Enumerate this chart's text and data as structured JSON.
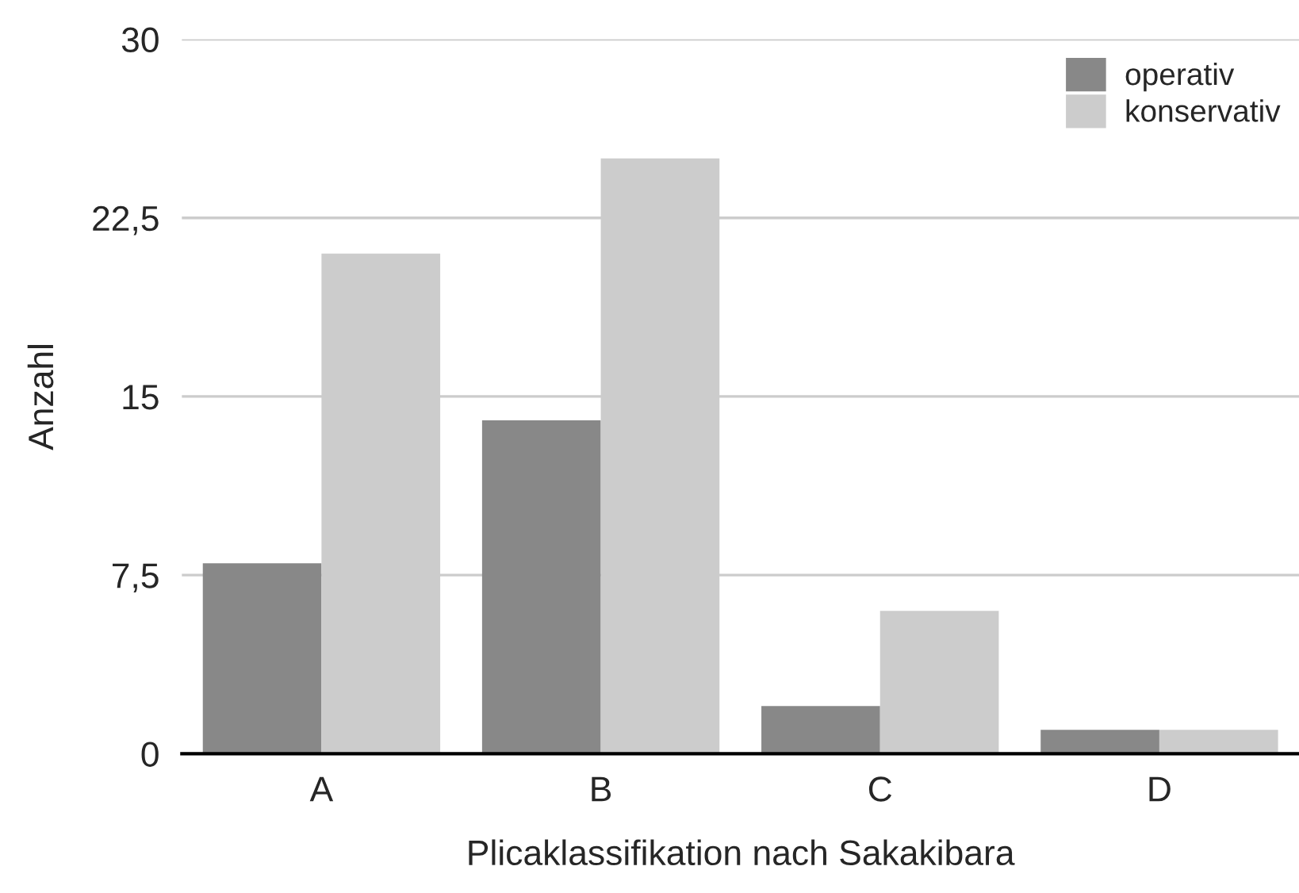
{
  "chart_data": {
    "type": "bar",
    "xlabel": "Plicaklassifikation nach Sakakibara",
    "ylabel": "Anzahl",
    "categories": [
      "A",
      "B",
      "C",
      "D"
    ],
    "series": [
      {
        "name": "operativ",
        "color": "#888888",
        "values": [
          8,
          14,
          2,
          1
        ]
      },
      {
        "name": "konservativ",
        "color": "#cccccc",
        "values": [
          21,
          25,
          6,
          1
        ]
      }
    ],
    "ylim": [
      0,
      30
    ],
    "yticks": [
      0,
      {
        "value": 7.5,
        "label": "7,5"
      },
      15,
      {
        "value": 22.5,
        "label": "22,5"
      },
      30
    ],
    "grid": "y",
    "legend": "top right"
  }
}
